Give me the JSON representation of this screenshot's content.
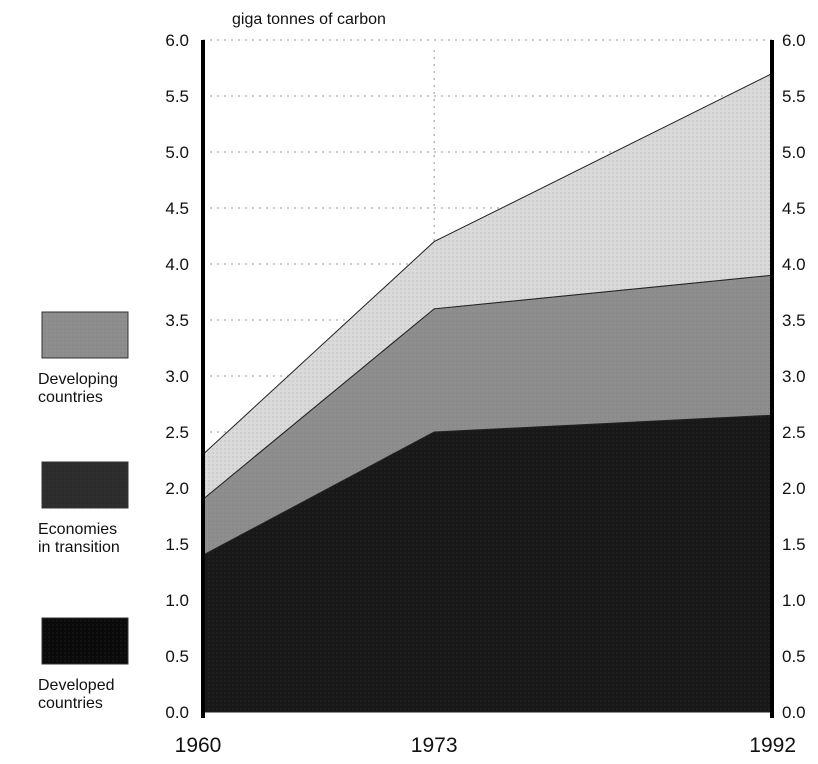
{
  "chart_data": {
    "type": "area",
    "stacked": true,
    "title": "",
    "ylabel": "giga tonnes of carbon",
    "xlabel": "",
    "x": [
      1960,
      1973,
      1992
    ],
    "x_tick_labels": [
      "1960",
      "1973",
      "1992"
    ],
    "ylim": [
      0.0,
      6.0
    ],
    "y_ticks": [
      "0.0",
      "0.5",
      "1.0",
      "1.5",
      "2.0",
      "2.5",
      "3.0",
      "3.5",
      "4.0",
      "4.5",
      "5.0",
      "5.5",
      "6.0"
    ],
    "y_axes": "both",
    "grid": true,
    "legend_position": "left",
    "series": [
      {
        "name": "Developed countries",
        "values": [
          1.4,
          2.5,
          2.65
        ],
        "color": "#181818"
      },
      {
        "name": "Economies in transition",
        "values": [
          0.5,
          1.1,
          1.25
        ],
        "color": "#8e8e8e"
      },
      {
        "name": "Developing countries",
        "values": [
          0.4,
          0.6,
          1.8
        ],
        "color": "#dadada"
      }
    ],
    "legend": [
      {
        "line1": "Developing",
        "line2": "countries",
        "color": "#8e8e8e"
      },
      {
        "line1": "Economies",
        "line2": "in transition",
        "color": "#2c2c2c"
      },
      {
        "line1": "Developed",
        "line2": "countries",
        "color": "#0a0a0a"
      }
    ]
  }
}
